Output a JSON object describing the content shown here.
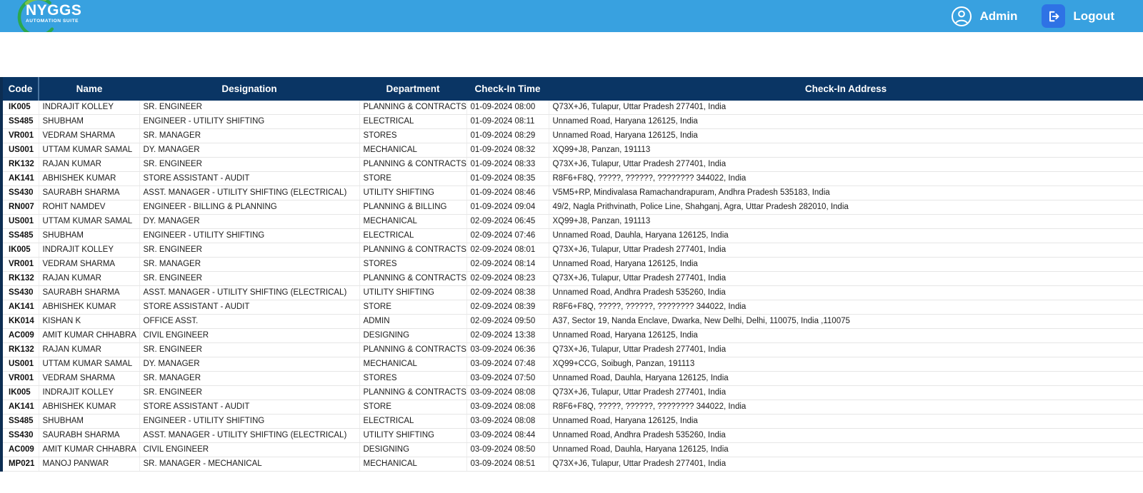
{
  "topbar": {
    "logo": {
      "title": "NYGGS",
      "subtitle": "AUTOMATION SUITE"
    },
    "admin_label": "Admin",
    "logout_label": "Logout"
  },
  "icons": {
    "admin": "user-circle-icon",
    "logout": "logout-arrow-icon",
    "logo": "green-swoosh-circle"
  },
  "colors": {
    "topbar_bg": "#38a1e0",
    "table_header_bg": "#0a3564",
    "logout_icon_bg": "#2e72e5",
    "logo_green": "#2ba84f",
    "row_separator": "#e6e6e6"
  },
  "table": {
    "headers": [
      "Code",
      "Name",
      "Designation",
      "Department",
      "Check-In Time",
      "Check-In Address"
    ],
    "header_keys": [
      "code",
      "name",
      "designation",
      "department",
      "checkin-time",
      "checkin-address"
    ],
    "rows": [
      [
        "IK005",
        "INDRAJIT KOLLEY",
        "SR. ENGINEER",
        "PLANNING & CONTRACTS",
        "01-09-2024 08:00",
        "Q73X+J6, Tulapur, Uttar Pradesh 277401, India"
      ],
      [
        "SS485",
        "SHUBHAM",
        "ENGINEER - UTILITY SHIFTING",
        "ELECTRICAL",
        "01-09-2024 08:11",
        "Unnamed Road, Haryana 126125, India"
      ],
      [
        "VR001",
        "VEDRAM SHARMA",
        "SR. MANAGER",
        "STORES",
        "01-09-2024 08:29",
        "Unnamed Road, Haryana 126125, India"
      ],
      [
        "US001",
        "UTTAM KUMAR SAMAL",
        "DY. MANAGER",
        "MECHANICAL",
        "01-09-2024 08:32",
        "XQ99+J8, Panzan, 191113"
      ],
      [
        "RK132",
        "RAJAN KUMAR",
        "SR. ENGINEER",
        "PLANNING & CONTRACTS",
        "01-09-2024 08:33",
        "Q73X+J6, Tulapur, Uttar Pradesh 277401, India"
      ],
      [
        "AK141",
        "ABHISHEK KUMAR",
        "STORE ASSISTANT - AUDIT",
        "STORE",
        "01-09-2024 08:35",
        "R8F6+F8Q, ?????, ??????, ???????? 344022, India"
      ],
      [
        "SS430",
        "SAURABH SHARMA",
        "ASST. MANAGER - UTILITY SHIFTING (ELECTRICAL)",
        "UTILITY SHIFTING",
        "01-09-2024 08:46",
        "V5M5+RP, Mindivalasa Ramachandrapuram, Andhra Pradesh 535183, India"
      ],
      [
        "RN007",
        "ROHIT NAMDEV",
        "ENGINEER - BILLING & PLANNING",
        "PLANNING & BILLING",
        "01-09-2024 09:04",
        "49/2, Nagla Prithvinath, Police Line, Shahganj, Agra, Uttar Pradesh 282010, India"
      ],
      [
        "US001",
        "UTTAM KUMAR SAMAL",
        "DY. MANAGER",
        "MECHANICAL",
        "02-09-2024 06:45",
        "XQ99+J8, Panzan, 191113"
      ],
      [
        "SS485",
        "SHUBHAM",
        "ENGINEER - UTILITY SHIFTING",
        "ELECTRICAL",
        "02-09-2024 07:46",
        "Unnamed Road, Dauhla, Haryana 126125, India"
      ],
      [
        "IK005",
        "INDRAJIT KOLLEY",
        "SR. ENGINEER",
        "PLANNING & CONTRACTS",
        "02-09-2024 08:01",
        "Q73X+J6, Tulapur, Uttar Pradesh 277401, India"
      ],
      [
        "VR001",
        "VEDRAM SHARMA",
        "SR. MANAGER",
        "STORES",
        "02-09-2024 08:14",
        "Unnamed Road, Haryana 126125, India"
      ],
      [
        "RK132",
        "RAJAN KUMAR",
        "SR. ENGINEER",
        "PLANNING & CONTRACTS",
        "02-09-2024 08:23",
        "Q73X+J6, Tulapur, Uttar Pradesh 277401, India"
      ],
      [
        "SS430",
        "SAURABH SHARMA",
        "ASST. MANAGER - UTILITY SHIFTING (ELECTRICAL)",
        "UTILITY SHIFTING",
        "02-09-2024 08:38",
        "Unnamed Road, Andhra Pradesh 535260, India"
      ],
      [
        "AK141",
        "ABHISHEK KUMAR",
        "STORE ASSISTANT - AUDIT",
        "STORE",
        "02-09-2024 08:39",
        "R8F6+F8Q, ?????, ??????, ???????? 344022, India"
      ],
      [
        "KK014",
        "KISHAN K",
        "OFFICE ASST.",
        "ADMIN",
        "02-09-2024 09:50",
        "A37, Sector 19, Nanda Enclave, Dwarka, New Delhi, Delhi, 110075, India ,110075"
      ],
      [
        "AC009",
        "AMIT KUMAR CHHABRA",
        "CIVIL ENGINEER",
        "DESIGNING",
        "02-09-2024 13:38",
        "Unnamed Road, Haryana 126125, India"
      ],
      [
        "RK132",
        "RAJAN KUMAR",
        "SR. ENGINEER",
        "PLANNING & CONTRACTS",
        "03-09-2024 06:36",
        "Q73X+J6, Tulapur, Uttar Pradesh 277401, India"
      ],
      [
        "US001",
        "UTTAM KUMAR SAMAL",
        "DY. MANAGER",
        "MECHANICAL",
        "03-09-2024 07:48",
        "XQ99+CCG, Soibugh, Panzan, 191113"
      ],
      [
        "VR001",
        "VEDRAM SHARMA",
        "SR. MANAGER",
        "STORES",
        "03-09-2024 07:50",
        "Unnamed Road, Dauhla, Haryana 126125, India"
      ],
      [
        "IK005",
        "INDRAJIT KOLLEY",
        "SR. ENGINEER",
        "PLANNING & CONTRACTS",
        "03-09-2024 08:08",
        "Q73X+J6, Tulapur, Uttar Pradesh 277401, India"
      ],
      [
        "AK141",
        "ABHISHEK KUMAR",
        "STORE ASSISTANT - AUDIT",
        "STORE",
        "03-09-2024 08:08",
        "R8F6+F8Q, ?????, ??????, ???????? 344022, India"
      ],
      [
        "SS485",
        "SHUBHAM",
        "ENGINEER - UTILITY SHIFTING",
        "ELECTRICAL",
        "03-09-2024 08:08",
        "Unnamed Road, Haryana 126125, India"
      ],
      [
        "SS430",
        "SAURABH SHARMA",
        "ASST. MANAGER - UTILITY SHIFTING (ELECTRICAL)",
        "UTILITY SHIFTING",
        "03-09-2024 08:44",
        "Unnamed Road, Andhra Pradesh 535260, India"
      ],
      [
        "AC009",
        "AMIT KUMAR CHHABRA",
        "CIVIL ENGINEER",
        "DESIGNING",
        "03-09-2024 08:50",
        "Unnamed Road, Dauhla, Haryana 126125, India"
      ],
      [
        "MP021",
        "MANOJ PANWAR",
        "SR. MANAGER - MECHANICAL",
        "MECHANICAL",
        "03-09-2024 08:51",
        "Q73X+J6, Tulapur, Uttar Pradesh 277401, India"
      ]
    ]
  }
}
